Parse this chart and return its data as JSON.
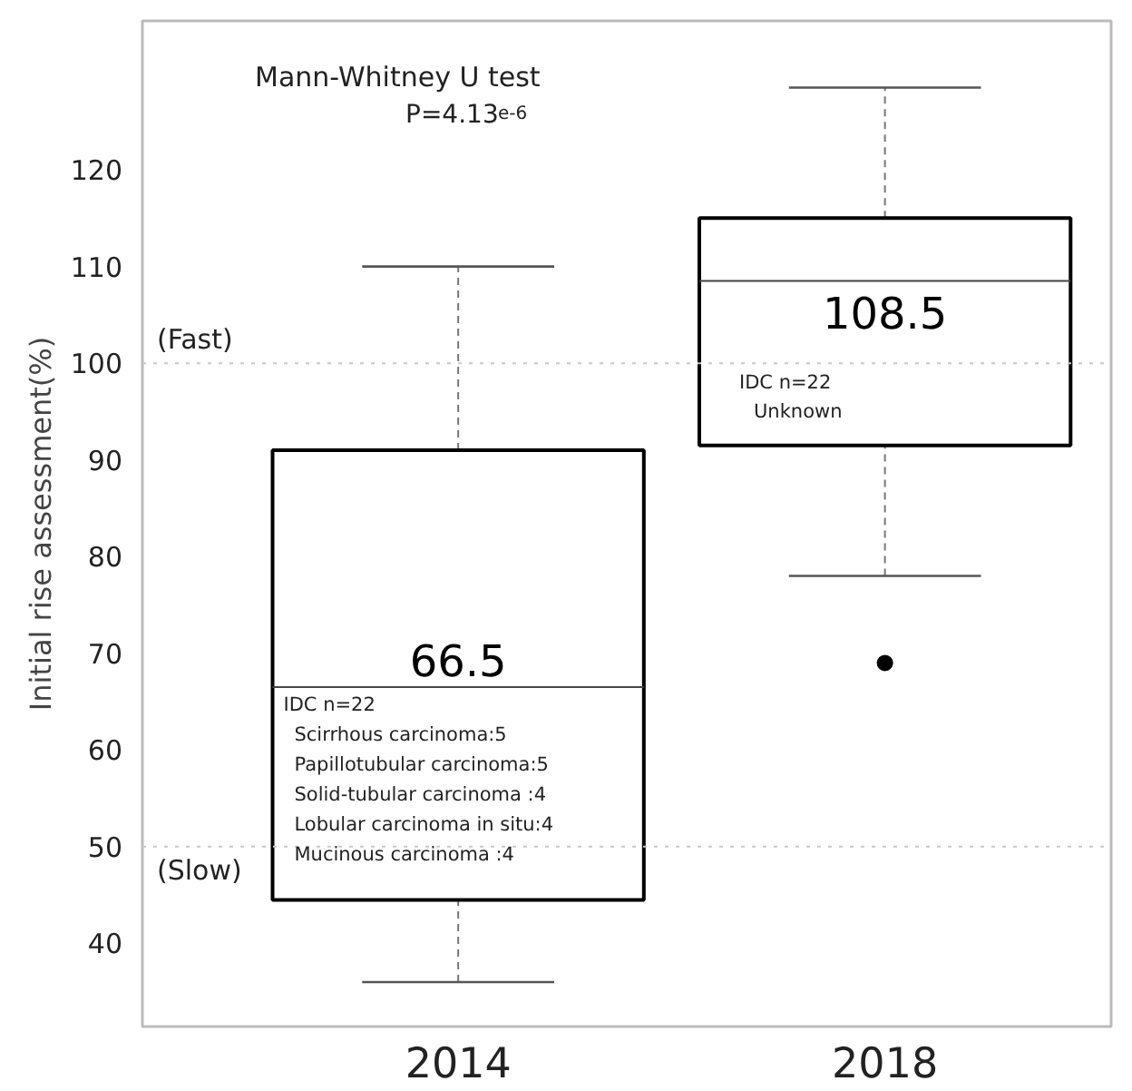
{
  "chart_data": {
    "type": "box",
    "categories": [
      "2014",
      "2018"
    ],
    "boxes": [
      {
        "low": 36,
        "q1": 44.5,
        "median": 66.5,
        "q3": 91,
        "high": 110
      },
      {
        "low": 78,
        "q1": 91.5,
        "median": 108.5,
        "q3": 115,
        "high": 128.5,
        "outliers": [
          69
        ]
      }
    ],
    "ylabel": "Initial rise assessment(%)",
    "ylim": [
      31.4,
      135.4
    ],
    "yticks": [
      40,
      50,
      60,
      70,
      80,
      90,
      100,
      110,
      120
    ],
    "ref_lines": [
      {
        "axis": "y",
        "value": 100,
        "label": "(Fast)",
        "color": "#c8c8c8",
        "line_style": "dotted"
      },
      {
        "axis": "y",
        "value": 50,
        "label": "(Slow)",
        "color": "#c8c8c8",
        "line_style": "dotted"
      }
    ],
    "annotations": [
      "Mann-Whitney U test",
      "P=4.13$^{e-6}$",
      {
        "text": "66.5",
        "x": "2014",
        "y": 66.5
      },
      {
        "text": "108.5",
        "x": "2018",
        "y": 108.5
      },
      "IDC n=22",
      "Scirrhous carcinoma:5",
      "Papillotubular carcinoma:5",
      "Solid-tubular carcinoma :4",
      "Lobular carcinoma in situ:4",
      "Mucinous carcinoma :4",
      "IDC n=22",
      "Unknown"
    ]
  }
}
